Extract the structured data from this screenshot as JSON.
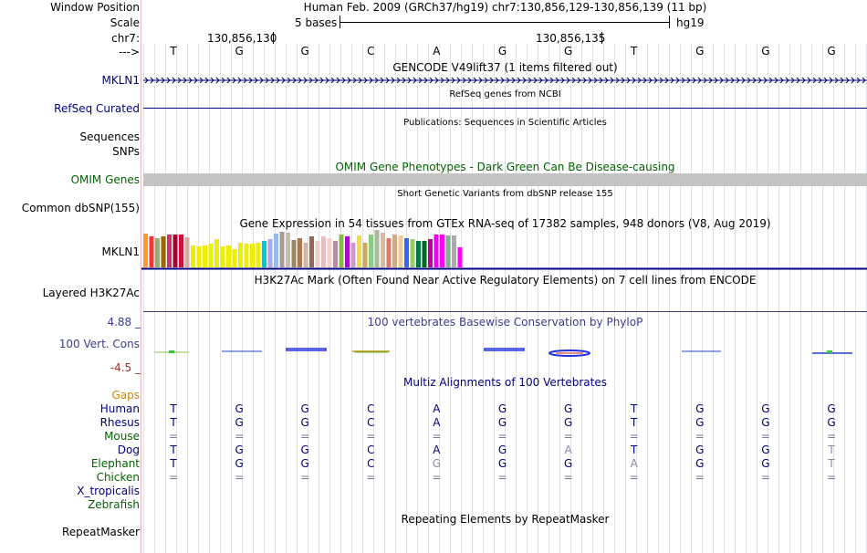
{
  "header": {
    "labels": {
      "position": "Window Position",
      "scale": "Scale",
      "chrom": "chr7:",
      "strand": "--->"
    },
    "position_text": "Human Feb. 2009 (GRCh37/hg19)   chr7:130,856,129-130,856,139 (11 bp)",
    "scale_text": "5 bases",
    "assembly": "hg19",
    "coord1": "130,856,130",
    "coord2": "130,856,135",
    "bases": [
      "T",
      "G",
      "G",
      "C",
      "A",
      "G",
      "G",
      "T",
      "G",
      "G",
      "G"
    ]
  },
  "tracks": {
    "gencode": {
      "title": "GENCODE V49lift37 (1 items filtered out)",
      "label": "MKLN1"
    },
    "refseq": {
      "title": "RefSeq genes from NCBI",
      "label": "RefSeq Curated"
    },
    "publications": {
      "title": "Publications: Sequences in Scientific Articles",
      "label1": "Sequences",
      "label2": "SNPs"
    },
    "omim": {
      "title": "OMIM Gene Phenotypes - Dark Green Can Be Disease-causing",
      "label": "OMIM Genes"
    },
    "dbsnp": {
      "title": "Short Genetic Variants from dbSNP release 155",
      "label": "Common dbSNP(155)"
    },
    "gtex": {
      "title": "Gene Expression in 54 tissues from GTEx RNA-seq of 17382 samples, 948 donors (V8, Aug 2019)",
      "label": "MKLN1"
    },
    "h3k27ac": {
      "title": "H3K27Ac Mark (Often Found Near Active Regulatory Elements) on 7 cell lines from ENCODE",
      "label": "Layered H3K27Ac"
    },
    "cons": {
      "title": "100 vertebrates Basewise Conservation by PhyloP",
      "label": "100 Vert. Cons",
      "ymax": "4.88 _",
      "ymin": "-4.5 _"
    },
    "multiz": {
      "title": "Multiz Alignments of 100 Vertebrates"
    },
    "repeat": {
      "title": "Repeating Elements by RepeatMasker",
      "label": "RepeatMasker"
    }
  },
  "gtex_values": [
    5.8,
    5.4,
    5.0,
    5.3,
    5.6,
    5.6,
    5.6,
    5.2,
    3.7,
    3.6,
    3.7,
    4.1,
    4.8,
    3.6,
    3.7,
    3.1,
    4.3,
    4.1,
    4.1,
    4.3,
    4.6,
    4.9,
    5.8,
    6.1,
    5.9,
    4.7,
    5.1,
    4.3,
    5.4,
    4.6,
    5.4,
    5.1,
    4.6,
    5.6,
    5.3,
    4.3,
    5.5,
    4.3,
    5.6,
    6.5,
    6.0,
    5.1,
    5.6,
    5.5,
    5.1,
    4.8,
    4.6,
    4.6,
    4.8,
    5.6,
    5.6,
    5.5,
    5.5,
    3.4
  ],
  "gtex_colors": [
    "#ff9933",
    "#ff3333",
    "#99aa77",
    "#996600",
    "#cc3366",
    "#aa0033",
    "#cc1133",
    "#dda8a0",
    "#eeee00",
    "#eeee00",
    "#eeee00",
    "#eeee00",
    "#eeee00",
    "#eeee00",
    "#eeee00",
    "#eeee00",
    "#eeee00",
    "#eeee00",
    "#eeee00",
    "#eeee00",
    "#00cccc",
    "#aaaaee",
    "#99bbee",
    "#aa9999",
    "#ccbbaa",
    "#998866",
    "#aa7755",
    "#d0b8a8",
    "#996655",
    "#eecccc",
    "#e0c0c0",
    "#ffcccc",
    "#bb88aa",
    "#88bb44",
    "#aa00cc",
    "#cc99cc",
    "#eedd55",
    "#ccaa55",
    "#88cc88",
    "#aabb99",
    "#ddbb99",
    "#dd7766",
    "#ccaa88",
    "#eecc99",
    "#3366ff",
    "#99cc66",
    "#007744",
    "#006622",
    "#bb0099",
    "#ee00ee",
    "#ff00ff",
    "#88aa99",
    "#aaaaaa",
    "#ff00ff"
  ],
  "multiz": {
    "species": [
      {
        "name": "Gaps",
        "color": "#cc8800",
        "bases": []
      },
      {
        "name": "Human",
        "color": "#000080",
        "bases": [
          "T",
          "G",
          "G",
          "C",
          "A",
          "G",
          "G",
          "T",
          "G",
          "G",
          "G"
        ]
      },
      {
        "name": "Rhesus",
        "color": "#000080",
        "bases": [
          "T",
          "G",
          "G",
          "C",
          "A",
          "G",
          "G",
          "T",
          "G",
          "G",
          "G"
        ]
      },
      {
        "name": "Mouse",
        "color": "#006400",
        "bases": [
          "=",
          "=",
          "=",
          "=",
          "=",
          "=",
          "=",
          "=",
          "=",
          "=",
          "="
        ]
      },
      {
        "name": "Dog",
        "color": "#000080",
        "bases": [
          "T",
          "G",
          "G",
          "C",
          "A",
          "G",
          "A",
          "T",
          "G",
          "G",
          "T"
        ]
      },
      {
        "name": "Elephant",
        "color": "#006400",
        "bases": [
          "T",
          "G",
          "G",
          "C",
          "G",
          "G",
          "G",
          "A",
          "G",
          "G",
          "T"
        ]
      },
      {
        "name": "Chicken",
        "color": "#006400",
        "bases": [
          "=",
          "=",
          "=",
          "=",
          "=",
          "=",
          "=",
          "=",
          "=",
          "=",
          "="
        ]
      },
      {
        "name": "X_tropicalis",
        "color": "#000080",
        "bases": []
      },
      {
        "name": "Zebrafish",
        "color": "#006400",
        "bases": []
      }
    ],
    "mismatch": {
      "Dog": [
        6,
        10
      ],
      "Elephant": [
        4,
        7,
        10
      ]
    }
  }
}
